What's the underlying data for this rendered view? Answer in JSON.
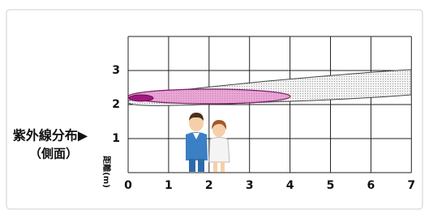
{
  "label": {
    "title": "紫外線分布▶",
    "subtitle": "（側面）"
  },
  "axis": {
    "x_ticks": [
      "0",
      "1",
      "2",
      "3",
      "4",
      "5",
      "6",
      "7"
    ],
    "y_ticks": [
      "1",
      "2",
      "3"
    ],
    "x_label": "距離(m)"
  }
}
